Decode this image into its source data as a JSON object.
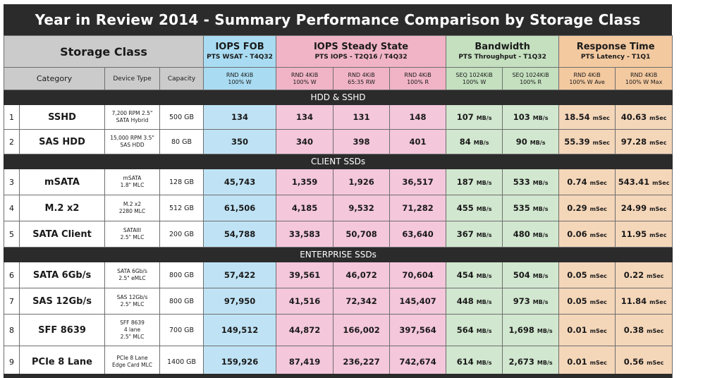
{
  "title": "Year in Review 2014 - Summary Performance Comparison by Storage Class",
  "header": {
    "storage_class": "Storage Class",
    "groups": [
      {
        "title": "IOPS FOB",
        "subtitle": "PTS WSAT - T4Q32"
      },
      {
        "title": "IOPS Steady State",
        "subtitle": "PTS IOPS -  T2Q16 / T4Q32"
      },
      {
        "title": "Bandwidth",
        "subtitle": "PTS Throughput - T1Q32"
      },
      {
        "title": "Response Time",
        "subtitle": "PTS Latency - T1Q1"
      }
    ],
    "columns": {
      "category": "Category",
      "device_type": "Device Type",
      "capacity": "Capacity",
      "fob": [
        "RND 4KiB",
        "100% W"
      ],
      "ss_w": [
        "RND 4KiB",
        "100% W"
      ],
      "ss_rw": [
        "RND 4KiB",
        "65:35 RW"
      ],
      "ss_r": [
        "RND 4KiB",
        "100% R"
      ],
      "bw_w": [
        "SEQ 1024KiB",
        "100% W"
      ],
      "bw_r": [
        "SEQ 1024KiB",
        "100% R"
      ],
      "rt_ave": [
        "RND 4KiB",
        "100% W Ave"
      ],
      "rt_max": [
        "RND 4KiB",
        "100% W Max"
      ]
    }
  },
  "units": {
    "bandwidth": "MB/s",
    "latency": "mSec"
  },
  "sections": [
    {
      "name": "HDD & SSHD",
      "rows": [
        {
          "num": "1",
          "category": "SSHD",
          "device": [
            "7,200 RPM 2.5\"",
            "SATA Hybrid"
          ],
          "capacity": "500 GB",
          "fob": "134",
          "ss_w": "134",
          "ss_rw": "131",
          "ss_r": "148",
          "bw_w": "107",
          "bw_r": "103",
          "rt_ave": "18.54",
          "rt_max": "40.63"
        },
        {
          "num": "2",
          "category": "SAS HDD",
          "device": [
            "15,000 RPM 3.5\"",
            "SAS HDD"
          ],
          "capacity": "80 GB",
          "fob": "350",
          "ss_w": "340",
          "ss_rw": "398",
          "ss_r": "401",
          "bw_w": "84",
          "bw_r": "90",
          "rt_ave": "55.39",
          "rt_max": "97.28"
        }
      ]
    },
    {
      "name": "CLIENT SSDs",
      "rows": [
        {
          "num": "3",
          "category": "mSATA",
          "device": [
            "mSATA",
            "1.8\" MLC"
          ],
          "capacity": "128 GB",
          "fob": "45,743",
          "ss_w": "1,359",
          "ss_rw": "1,926",
          "ss_r": "36,517",
          "bw_w": "187",
          "bw_r": "533",
          "rt_ave": "0.74",
          "rt_max": "543.41"
        },
        {
          "num": "4",
          "category": "M.2 x2",
          "device": [
            "M.2 x2",
            "2280 MLC"
          ],
          "capacity": "512 GB",
          "fob": "61,506",
          "ss_w": "4,185",
          "ss_rw": "9,532",
          "ss_r": "71,282",
          "bw_w": "455",
          "bw_r": "535",
          "rt_ave": "0.29",
          "rt_max": "24.99"
        },
        {
          "num": "5",
          "category": "SATA Client",
          "device": [
            "SATAIII",
            "2.5\" MLC"
          ],
          "capacity": "200 GB",
          "fob": "54,788",
          "ss_w": "33,583",
          "ss_rw": "50,708",
          "ss_r": "63,640",
          "bw_w": "367",
          "bw_r": "480",
          "rt_ave": "0.06",
          "rt_max": "11.95"
        }
      ]
    },
    {
      "name": "ENTERPRISE SSDs",
      "rows": [
        {
          "num": "6",
          "category": "SATA 6Gb/s",
          "device": [
            "SATA 6Gb/s",
            "2.5\" eMLC"
          ],
          "capacity": "800 GB",
          "fob": "57,422",
          "ss_w": "39,561",
          "ss_rw": "46,072",
          "ss_r": "70,604",
          "bw_w": "454",
          "bw_r": "504",
          "rt_ave": "0.05",
          "rt_max": "0.22"
        },
        {
          "num": "7",
          "category": "SAS 12Gb/s",
          "device": [
            "SAS 12Gb/s",
            "2.5\" MLC"
          ],
          "capacity": "800 GB",
          "fob": "97,950",
          "ss_w": "41,516",
          "ss_rw": "72,342",
          "ss_r": "145,407",
          "bw_w": "448",
          "bw_r": "973",
          "rt_ave": "0.05",
          "rt_max": "11.84"
        },
        {
          "num": "8",
          "category": "SFF 8639",
          "device": [
            "SFF 8639",
            "4 lane",
            "2.5\" MLC"
          ],
          "capacity": "700 GB",
          "fob": "149,512",
          "ss_w": "44,872",
          "ss_rw": "166,002",
          "ss_r": "397,564",
          "bw_w": "564",
          "bw_r": "1,698",
          "rt_ave": "0.01",
          "rt_max": "0.38"
        },
        {
          "num": "9",
          "category": "PCIe 8 Lane",
          "device": [
            "PCIe 8 Lane",
            "Edge Card MLC"
          ],
          "capacity": "1400 GB",
          "fob": "159,926",
          "ss_w": "87,419",
          "ss_rw": "236,227",
          "ss_r": "742,674",
          "bw_w": "614",
          "bw_r": "2,673",
          "rt_ave": "0.01",
          "rt_max": "0.56"
        }
      ]
    }
  ],
  "colors": {
    "dark": "#2b2b2b",
    "gray_header": "#cbcbcb",
    "iops_fob": "#a9dcf2",
    "iops_ss": "#f1b4c7",
    "bandwidth": "#c4e0bf",
    "response": "#f3c9a0"
  }
}
